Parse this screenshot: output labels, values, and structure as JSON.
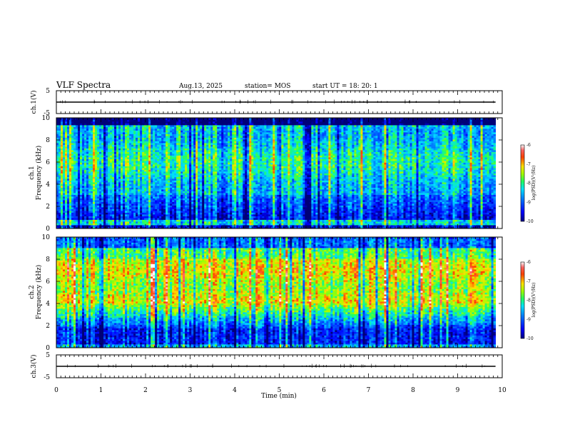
{
  "header": {
    "title": "VLF Spectra",
    "date": "Aug.13, 2025",
    "station": "station= MOS",
    "start_ut": "start  UT =   18: 20: 1"
  },
  "chart_data": [
    {
      "type": "line",
      "ylabel": "ch.1(V)",
      "ylim": [
        -5,
        5
      ],
      "yticks": [
        "5",
        "-5"
      ],
      "baseline_value": 0
    },
    {
      "type": "heatmap",
      "ylabel": "Frequency (kHz)",
      "channel_label": "ch.1",
      "ylim": [
        0,
        10
      ],
      "yticks": [
        "0",
        "2",
        "4",
        "6",
        "8",
        "10"
      ],
      "colorbar": {
        "label": "log(PSD)(V²/Hz)",
        "range": [
          -10,
          -6
        ],
        "ticks": [
          "-6",
          "-7",
          "-8",
          "-9",
          "-10"
        ]
      },
      "dominant_band_khz": [
        3,
        9
      ],
      "peak_log_psd": -8
    },
    {
      "type": "heatmap",
      "ylabel": "Frequency (kHz)",
      "channel_label": "ch.2",
      "ylim": [
        0,
        10
      ],
      "yticks": [
        "0",
        "2",
        "4",
        "6",
        "8",
        "10"
      ],
      "colorbar": {
        "label": "log(PSD)(V²/Hz)",
        "range": [
          -10,
          -6
        ],
        "ticks": [
          "-6",
          "-7",
          "-8",
          "-9",
          "-10"
        ]
      },
      "dominant_band_khz": [
        4,
        8
      ],
      "peak_log_psd": -7
    },
    {
      "type": "line",
      "ylabel": "ch.3(V)",
      "ylim": [
        -5,
        5
      ],
      "yticks": [
        "5",
        "-5"
      ],
      "baseline_value": 0
    }
  ],
  "xaxis": {
    "label": "Time  (min)",
    "xlim": [
      0,
      10
    ],
    "ticks": [
      "0",
      "1",
      "2",
      "3",
      "4",
      "5",
      "6",
      "7",
      "8",
      "9",
      "10"
    ],
    "data_end": 9.85
  },
  "colors": {
    "ink": "#000000",
    "jet": [
      "#00007f",
      "#0000ff",
      "#007fff",
      "#00ffff",
      "#7fff7f",
      "#ffff00",
      "#ff7f00",
      "#ff0000"
    ]
  }
}
